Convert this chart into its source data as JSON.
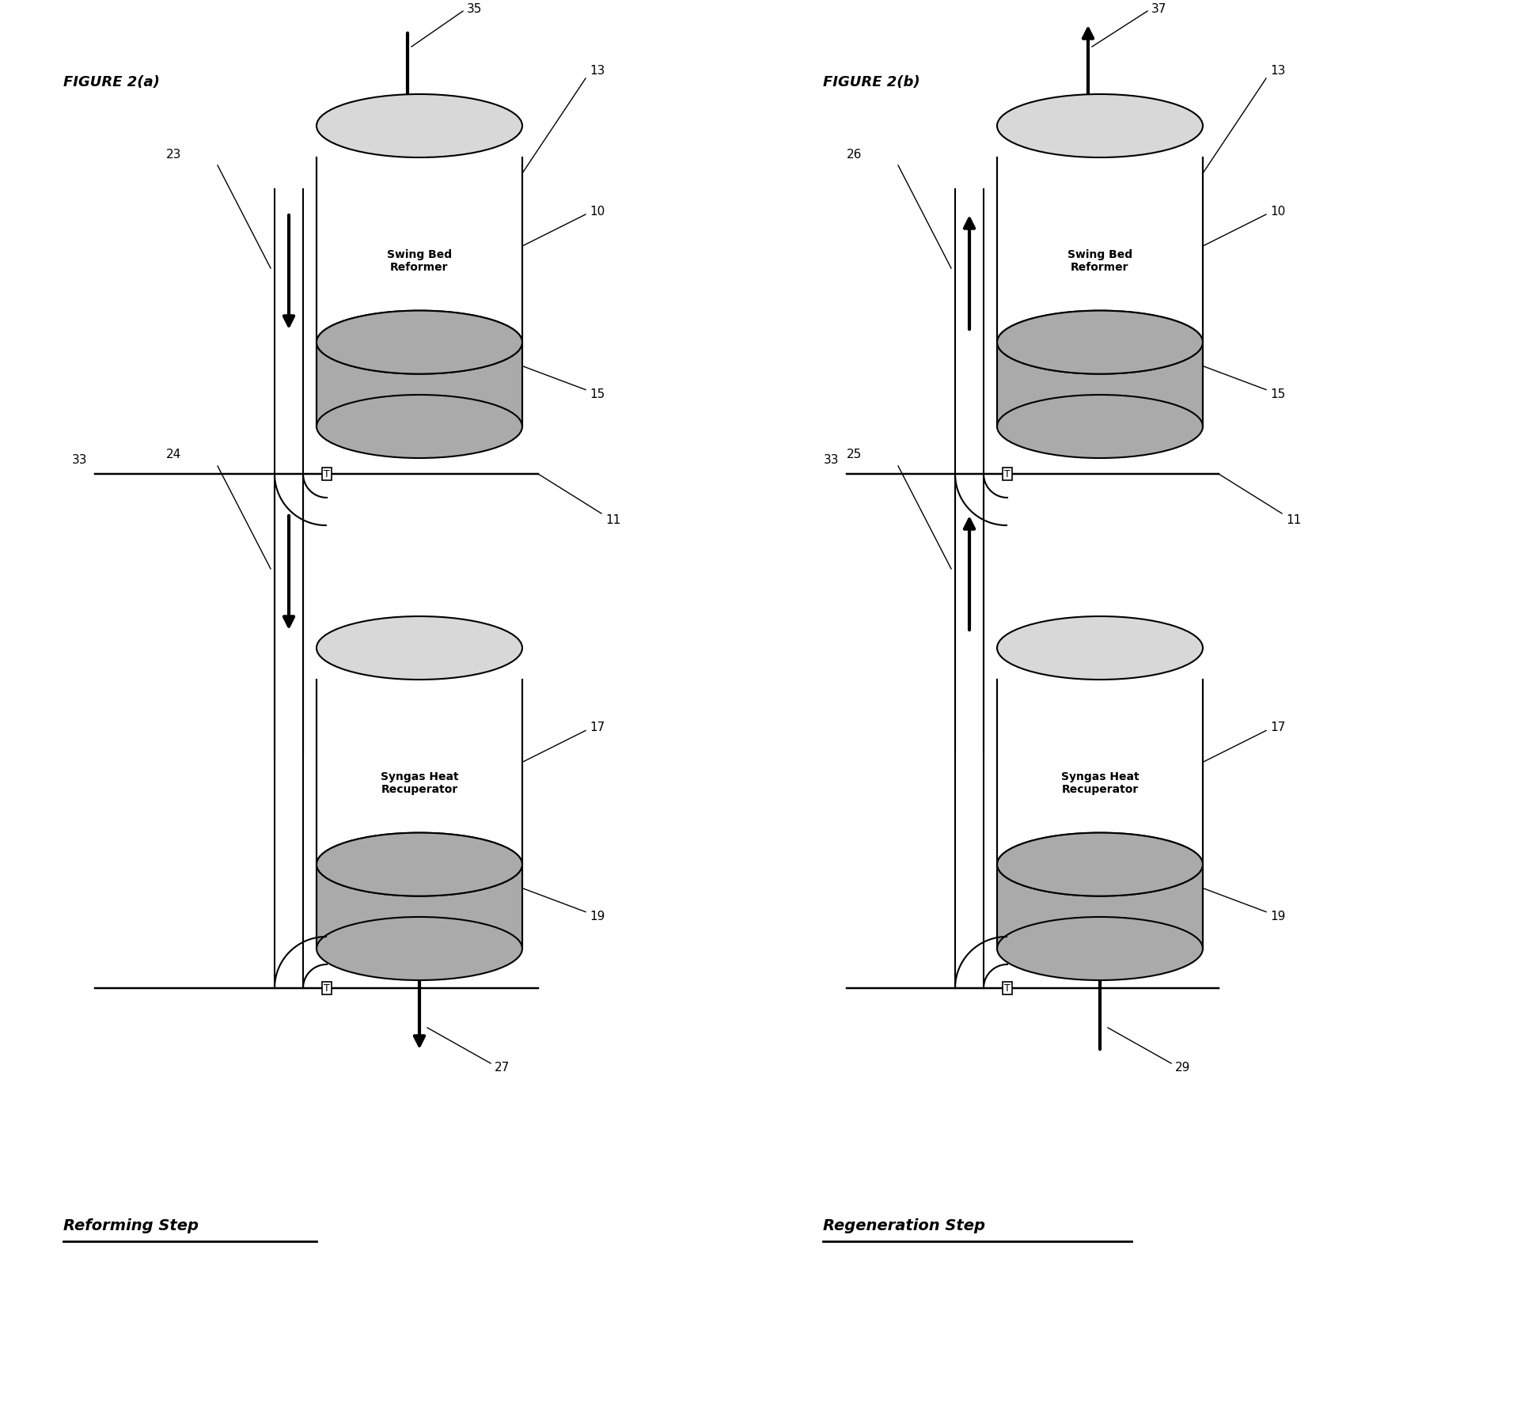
{
  "bg_color": "#ffffff",
  "figure_title_a": "FIGURE 2(a)",
  "figure_title_b": "FIGURE 2(b)",
  "label_reforming": "Reforming Step",
  "label_regeneration": "Regeneration Step",
  "swing_bed_label": "Swing Bed\nReformer",
  "syngas_heat_label": "Syngas Heat\nRecuperator",
  "fill_color": "#aaaaaa",
  "body_color": "#ffffff",
  "top_ellipse_color": "#d8d8d8",
  "lw": 1.5,
  "arrow_lw": 3.0,
  "label_fontsize": 11,
  "title_fontsize": 13,
  "step_fontsize": 14,
  "cyl_fontsize": 10
}
